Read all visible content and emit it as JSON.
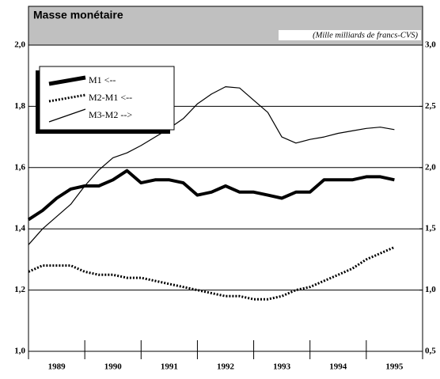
{
  "chart_data": {
    "type": "line",
    "title": "Masse monétaire",
    "subtitle": "(Mille milliards de francs-CVS)",
    "x": [
      1989.0,
      1989.25,
      1989.5,
      1989.75,
      1990.0,
      1990.25,
      1990.5,
      1990.75,
      1991.0,
      1991.25,
      1991.5,
      1991.75,
      1992.0,
      1992.25,
      1992.5,
      1992.75,
      1993.0,
      1993.25,
      1993.5,
      1993.75,
      1994.0,
      1994.25,
      1994.5,
      1994.75,
      1995.0,
      1995.25,
      1995.5
    ],
    "series": [
      {
        "name": "M1 <--",
        "color": "#000000",
        "line_width": 4,
        "line_style": "solid",
        "axis": "y",
        "values": [
          1.43,
          1.46,
          1.5,
          1.53,
          1.54,
          1.54,
          1.56,
          1.59,
          1.55,
          1.56,
          1.56,
          1.55,
          1.51,
          1.52,
          1.54,
          1.52,
          1.52,
          1.51,
          1.5,
          1.52,
          1.52,
          1.56,
          1.56,
          1.56,
          1.57,
          1.57,
          1.56
        ]
      },
      {
        "name": "M2-M1 <--",
        "color": "#000000",
        "line_width": 3,
        "line_style": "dotted",
        "axis": "y",
        "values": [
          1.26,
          1.28,
          1.28,
          1.28,
          1.26,
          1.25,
          1.25,
          1.24,
          1.24,
          1.23,
          1.22,
          1.21,
          1.2,
          1.19,
          1.18,
          1.18,
          1.17,
          1.17,
          1.18,
          1.2,
          1.21,
          1.23,
          1.25,
          1.27,
          1.3,
          1.32,
          1.34
        ]
      },
      {
        "name": "M3-M2 -->",
        "color": "#000000",
        "line_width": 1.2,
        "line_style": "solid",
        "axis": "y2",
        "values": [
          1.37,
          1.5,
          1.6,
          1.7,
          1.85,
          1.98,
          2.08,
          2.12,
          2.18,
          2.25,
          2.32,
          2.4,
          2.52,
          2.6,
          2.66,
          2.65,
          2.55,
          2.45,
          2.25,
          2.2,
          2.23,
          2.25,
          2.28,
          2.3,
          2.32,
          2.33,
          2.31
        ]
      }
    ],
    "xlim": [
      1989,
      1996
    ],
    "xticks": [
      1989,
      1990,
      1991,
      1992,
      1993,
      1994,
      1995,
      1996
    ],
    "year_labels": [
      1989,
      1990,
      1991,
      1992,
      1993,
      1994,
      1995
    ],
    "ylim": [
      1.0,
      2.0
    ],
    "yticks": [
      {
        "value": 1.0,
        "label": "1,0"
      },
      {
        "value": 1.2,
        "label": "1,2"
      },
      {
        "value": 1.4,
        "label": "1,4"
      },
      {
        "value": 1.6,
        "label": "1,6"
      },
      {
        "value": 1.8,
        "label": "1,8"
      },
      {
        "value": 2.0,
        "label": "2,0"
      }
    ],
    "y2lim": [
      0.5,
      3.0
    ],
    "y2ticks": [
      {
        "value": 0.5,
        "label": "0,5"
      },
      {
        "value": 1.0,
        "label": "1,0"
      },
      {
        "value": 1.5,
        "label": "1,5"
      },
      {
        "value": 2.0,
        "label": "2,0"
      },
      {
        "value": 2.5,
        "label": "2,5"
      },
      {
        "value": 3.0,
        "label": "3,0"
      }
    ],
    "grid": true,
    "legend": "upper left"
  }
}
